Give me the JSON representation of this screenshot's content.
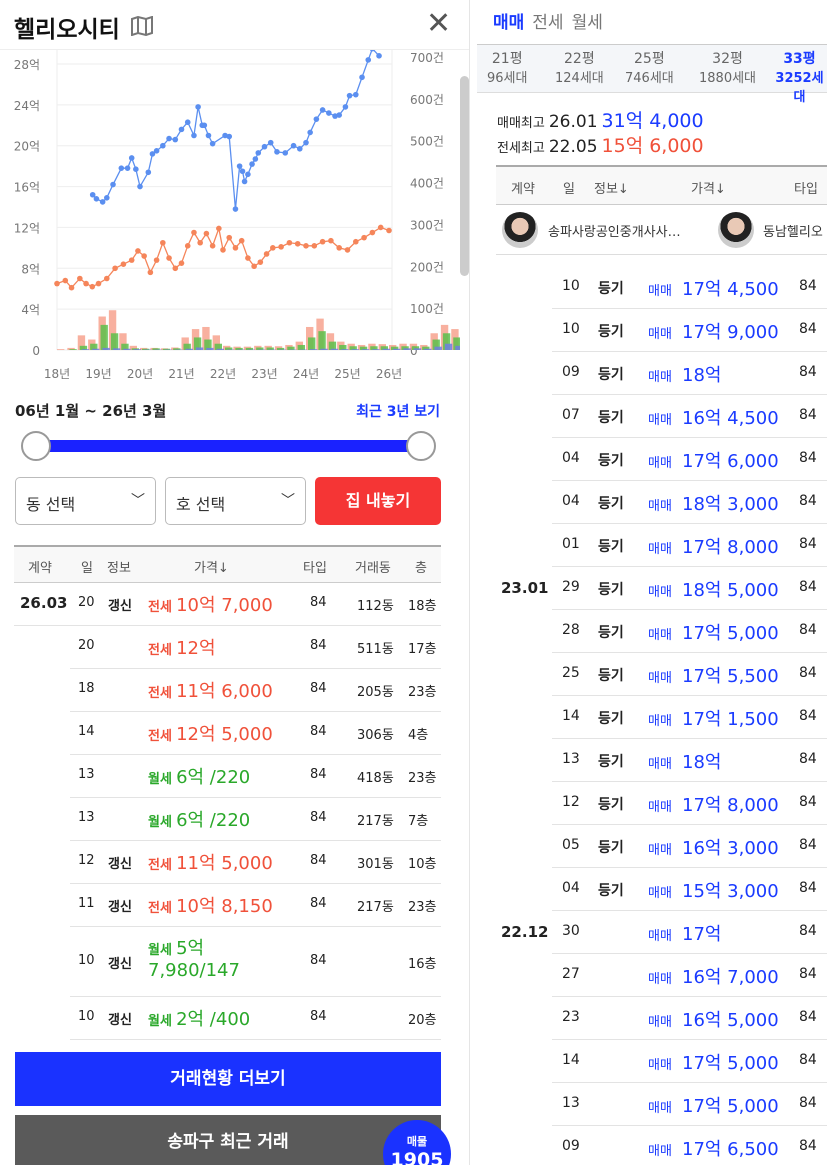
{
  "header": {
    "title": "헬리오시티",
    "map_icon": "map-icon",
    "close_icon": "close-icon"
  },
  "chart_data": {
    "type": "line",
    "x_ticks": [
      "18년",
      "19년",
      "20년",
      "21년",
      "22년",
      "23년",
      "24년",
      "25년",
      "26년"
    ],
    "y_ticks_left": [
      "0",
      "4억",
      "8억",
      "12억",
      "16억",
      "20억",
      "24억",
      "28억"
    ],
    "y_ticks_right": [
      "0",
      "100건",
      "200건",
      "300건",
      "400건",
      "500건",
      "600건",
      "700건"
    ],
    "ylim_left": [
      0,
      29
    ],
    "ylim_right": [
      0,
      700
    ],
    "xlim": [
      2018,
      2026
    ],
    "grid": true,
    "colors": {
      "sale": "#5b8ff0",
      "jeonse": "#f5855a",
      "bar_jeonse": "#f7a28e",
      "bar_wolse": "#5cbf4a",
      "bar_sale": "#6f7fe0"
    },
    "series": [
      {
        "key": "sale",
        "x": [
          2018.86,
          2018.95,
          2019.1,
          2019.2,
          2019.35,
          2019.55,
          2019.7,
          2019.8,
          2019.9,
          2020.0,
          2020.2,
          2020.3,
          2020.4,
          2020.55,
          2020.7,
          2020.85,
          2021.0,
          2021.15,
          2021.3,
          2021.4,
          2021.5,
          2021.55,
          2021.65,
          2021.75,
          2022.05,
          2022.15,
          2022.3,
          2022.4,
          2022.47,
          2022.52,
          2022.6,
          2022.7,
          2022.78,
          2022.85,
          2023.0,
          2023.15,
          2023.3,
          2023.5,
          2023.7,
          2023.85,
          2024.0,
          2024.1,
          2024.25,
          2024.4,
          2024.55,
          2024.7,
          2024.8,
          2024.95,
          2025.05,
          2025.2,
          2025.35,
          2025.5,
          2025.6,
          2025.76
        ],
        "y": [
          15.2,
          14.8,
          14.5,
          14.9,
          16.2,
          17.8,
          17.8,
          18.8,
          17.7,
          16.0,
          17.4,
          19.2,
          19.5,
          20.0,
          20.7,
          20.6,
          21.6,
          22.3,
          21.0,
          23.8,
          22.0,
          22.0,
          21.0,
          20.2,
          21.0,
          20.9,
          13.8,
          18.0,
          17.5,
          16.5,
          17.2,
          18.2,
          18.7,
          19.3,
          19.9,
          20.3,
          19.4,
          19.3,
          20.0,
          19.7,
          20.3,
          21.3,
          22.6,
          23.5,
          23.2,
          22.9,
          23.0,
          23.8,
          24.9,
          25.0,
          26.7,
          28.4,
          29.5,
          28.8
        ]
      },
      {
        "key": "jeonse",
        "x": [
          2018.0,
          2018.2,
          2018.35,
          2018.55,
          2018.7,
          2018.85,
          2019.0,
          2019.2,
          2019.4,
          2019.6,
          2019.8,
          2019.95,
          2020.1,
          2020.25,
          2020.4,
          2020.55,
          2020.7,
          2020.85,
          2021.0,
          2021.15,
          2021.3,
          2021.45,
          2021.6,
          2021.75,
          2021.9,
          2022.0,
          2022.15,
          2022.3,
          2022.45,
          2022.6,
          2022.75,
          2022.9,
          2023.05,
          2023.2,
          2023.4,
          2023.6,
          2023.8,
          2024.0,
          2024.2,
          2024.4,
          2024.6,
          2024.8,
          2025.0,
          2025.2,
          2025.4,
          2025.6,
          2025.8,
          2026.0
        ],
        "y": [
          6.5,
          6.8,
          6.1,
          7.0,
          6.5,
          6.2,
          6.5,
          7.0,
          8.0,
          8.4,
          8.8,
          9.7,
          9.2,
          7.6,
          8.8,
          10.5,
          9.0,
          8.0,
          8.5,
          10.2,
          11.5,
          10.5,
          11.4,
          10.2,
          11.9,
          9.8,
          11.0,
          10.0,
          10.7,
          9.0,
          8.2,
          8.6,
          9.4,
          10.0,
          10.1,
          10.5,
          10.4,
          10.2,
          10.2,
          10.6,
          10.7,
          10.0,
          9.8,
          10.6,
          11.0,
          11.5,
          12.0,
          11.7
        ]
      },
      {
        "key": "bar_jeonse",
        "x_start": 2018,
        "step_years": 0.25,
        "values": [
          2,
          5,
          35,
          25,
          80,
          95,
          40,
          10,
          5,
          5,
          4,
          6,
          30,
          50,
          55,
          35,
          10,
          8,
          8,
          10,
          10,
          9,
          12,
          20,
          55,
          75,
          40,
          20,
          15,
          12,
          15,
          14,
          12,
          15,
          15,
          12,
          40,
          60,
          50,
          25,
          20,
          18,
          22,
          15
        ]
      },
      {
        "key": "bar_wolse",
        "x_start": 2018,
        "step_years": 0.25,
        "values": [
          0,
          2,
          10,
          15,
          60,
          40,
          15,
          4,
          3,
          4,
          3,
          4,
          15,
          30,
          25,
          15,
          6,
          5,
          5,
          6,
          6,
          5,
          8,
          12,
          30,
          45,
          20,
          12,
          9,
          8,
          9,
          9,
          8,
          9,
          9,
          8,
          25,
          40,
          30,
          15,
          12,
          10,
          14,
          10
        ]
      },
      {
        "key": "bar_sale",
        "x_start": 2018,
        "step_years": 0.25,
        "values": [
          0,
          0,
          2,
          3,
          5,
          4,
          3,
          2,
          1,
          1,
          1,
          1,
          3,
          6,
          5,
          3,
          1,
          1,
          1,
          1,
          1,
          1,
          1,
          1,
          2,
          3,
          3,
          2,
          2,
          2,
          2,
          3,
          3,
          4,
          4,
          3,
          8,
          15,
          10,
          6,
          4,
          4,
          5,
          3
        ]
      }
    ]
  },
  "range": {
    "label": "06년 1월 ~ 26년 3월",
    "recent": "최근 3년 보기",
    "from": 0,
    "to": 1
  },
  "filters": {
    "dong": "동 선택",
    "ho": "호 선택",
    "list_button": "집 내놓기"
  },
  "left_table": {
    "headers": [
      "계약",
      "일",
      "정보",
      "가격↓",
      "타입",
      "거래동",
      "층"
    ],
    "rows": [
      {
        "month": "26.03",
        "day": "20",
        "info": "갱신",
        "kind": "전세",
        "price": "10억 7,000",
        "type": "84",
        "dong": "112동",
        "floor": "18층",
        "cls": "jeonse"
      },
      {
        "month": "",
        "day": "20",
        "info": "",
        "kind": "전세",
        "price": "12억",
        "type": "84",
        "dong": "511동",
        "floor": "17층",
        "cls": "jeonse"
      },
      {
        "month": "",
        "day": "18",
        "info": "",
        "kind": "전세",
        "price": "11억 6,000",
        "type": "84",
        "dong": "205동",
        "floor": "23층",
        "cls": "jeonse"
      },
      {
        "month": "",
        "day": "14",
        "info": "",
        "kind": "전세",
        "price": "12억 5,000",
        "type": "84",
        "dong": "306동",
        "floor": "4층",
        "cls": "jeonse"
      },
      {
        "month": "",
        "day": "13",
        "info": "",
        "kind": "월세",
        "price": "6억 /220",
        "type": "84",
        "dong": "418동",
        "floor": "23층",
        "cls": "wolse"
      },
      {
        "month": "",
        "day": "13",
        "info": "",
        "kind": "월세",
        "price": "6억 /220",
        "type": "84",
        "dong": "217동",
        "floor": "7층",
        "cls": "wolse"
      },
      {
        "month": "",
        "day": "12",
        "info": "갱신",
        "kind": "전세",
        "price": "11억 5,000",
        "type": "84",
        "dong": "301동",
        "floor": "10층",
        "cls": "jeonse"
      },
      {
        "month": "",
        "day": "11",
        "info": "갱신",
        "kind": "전세",
        "price": "10억 8,150",
        "type": "84",
        "dong": "217동",
        "floor": "23층",
        "cls": "jeonse"
      },
      {
        "month": "",
        "day": "10",
        "info": "갱신",
        "kind": "월세",
        "price": "5억",
        "price2": "7,980/147",
        "type": "84",
        "dong": "",
        "floor": "16층",
        "cls": "wolse"
      },
      {
        "month": "",
        "day": "10",
        "info": "갱신",
        "kind": "월세",
        "price": "2억 /400",
        "type": "84",
        "dong": "",
        "floor": "20층",
        "cls": "wolse"
      }
    ]
  },
  "buttons": {
    "more": "거래현황 더보기",
    "district": "송파구 최근 거래",
    "badge_label": "매물",
    "badge_count": "1905"
  },
  "right": {
    "tabs": [
      "매매",
      "전세",
      "월세"
    ],
    "sizes": [
      {
        "p": "21평",
        "h": "96세대"
      },
      {
        "p": "22평",
        "h": "124세대"
      },
      {
        "p": "25평",
        "h": "746세대"
      },
      {
        "p": "32평",
        "h": "1880세대"
      },
      {
        "p": "33평",
        "h": "3252세대"
      }
    ],
    "sale_max": {
      "label": "매매최고",
      "date": "26.01",
      "price": "31억 4,000"
    },
    "jeonse_max": {
      "label": "전세최고",
      "date": "22.05",
      "price": "15억 6,000"
    },
    "headers": [
      "계약",
      "일",
      "정보↓",
      "가격↓",
      "타입"
    ],
    "agents": [
      "송파사랑공인중개사사…",
      "동남헬리오"
    ],
    "rows": [
      {
        "month": "",
        "day": "10",
        "info": "등기",
        "kind": "매매",
        "price": "17억 4,500",
        "type": "84"
      },
      {
        "month": "",
        "day": "10",
        "info": "등기",
        "kind": "매매",
        "price": "17억 9,000",
        "type": "84"
      },
      {
        "month": "",
        "day": "09",
        "info": "등기",
        "kind": "매매",
        "price": "18억",
        "type": "84"
      },
      {
        "month": "",
        "day": "07",
        "info": "등기",
        "kind": "매매",
        "price": "16억 4,500",
        "type": "84"
      },
      {
        "month": "",
        "day": "04",
        "info": "등기",
        "kind": "매매",
        "price": "17억 6,000",
        "type": "84"
      },
      {
        "month": "",
        "day": "04",
        "info": "등기",
        "kind": "매매",
        "price": "18억 3,000",
        "type": "84"
      },
      {
        "month": "",
        "day": "01",
        "info": "등기",
        "kind": "매매",
        "price": "17억 8,000",
        "type": "84"
      },
      {
        "month": "23.01",
        "day": "29",
        "info": "등기",
        "kind": "매매",
        "price": "18억 5,000",
        "type": "84"
      },
      {
        "month": "",
        "day": "28",
        "info": "등기",
        "kind": "매매",
        "price": "17억 5,000",
        "type": "84"
      },
      {
        "month": "",
        "day": "25",
        "info": "등기",
        "kind": "매매",
        "price": "17억 5,500",
        "type": "84"
      },
      {
        "month": "",
        "day": "14",
        "info": "등기",
        "kind": "매매",
        "price": "17억 1,500",
        "type": "84"
      },
      {
        "month": "",
        "day": "13",
        "info": "등기",
        "kind": "매매",
        "price": "18억",
        "type": "84"
      },
      {
        "month": "",
        "day": "12",
        "info": "등기",
        "kind": "매매",
        "price": "17억 8,000",
        "type": "84"
      },
      {
        "month": "",
        "day": "05",
        "info": "등기",
        "kind": "매매",
        "price": "16억 3,000",
        "type": "84"
      },
      {
        "month": "",
        "day": "04",
        "info": "등기",
        "kind": "매매",
        "price": "15억 3,000",
        "type": "84"
      },
      {
        "month": "22.12",
        "day": "30",
        "info": "",
        "kind": "매매",
        "price": "17억",
        "type": "84"
      },
      {
        "month": "",
        "day": "27",
        "info": "",
        "kind": "매매",
        "price": "16억 7,000",
        "type": "84"
      },
      {
        "month": "",
        "day": "23",
        "info": "",
        "kind": "매매",
        "price": "16억 5,000",
        "type": "84"
      },
      {
        "month": "",
        "day": "14",
        "info": "",
        "kind": "매매",
        "price": "17억 5,000",
        "type": "84"
      },
      {
        "month": "",
        "day": "13",
        "info": "",
        "kind": "매매",
        "price": "17억 5,000",
        "type": "84"
      },
      {
        "month": "",
        "day": "09",
        "info": "",
        "kind": "매매",
        "price": "17억 6,500",
        "type": "84"
      }
    ]
  }
}
